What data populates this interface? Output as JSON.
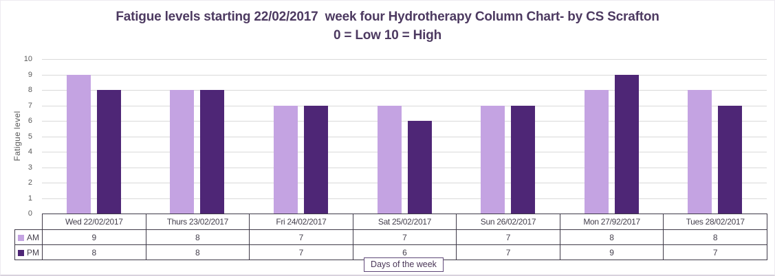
{
  "chart_data": {
    "type": "bar",
    "title_line1": "Fatigue levels starting 22/02/2017  week four Hydrotherapy Column Chart- by CS Scrafton",
    "title_line2": "0 = Low 10 = High",
    "ylabel": "Fatigue level",
    "xlabel": "Days of the week",
    "ylim": [
      0,
      10
    ],
    "ytick_step": 1,
    "grid": true,
    "legend_position": "data-table-left",
    "categories": [
      "Wed 22/02/2017",
      "Thurs 23/02/2017",
      "Fri 24/02/2017",
      "Sat 25/02/2017",
      "Sun 26/02/2017",
      "Mon 27/92/2017",
      "Tues 28/02/2017"
    ],
    "series": [
      {
        "name": "AM",
        "color": "#c4a3e2",
        "values": [
          9,
          8,
          7,
          7,
          7,
          8,
          8
        ]
      },
      {
        "name": "PM",
        "color": "#4e2676",
        "values": [
          8,
          8,
          7,
          6,
          7,
          9,
          7
        ]
      }
    ]
  },
  "colors": {
    "title_text": "#4d3a61",
    "axis_text": "#595959",
    "gridline": "#d9d9d9",
    "table_border": "#3e3947",
    "table_text": "#45404d",
    "am_bar": "#c4a3e2",
    "pm_bar": "#4e2676"
  }
}
